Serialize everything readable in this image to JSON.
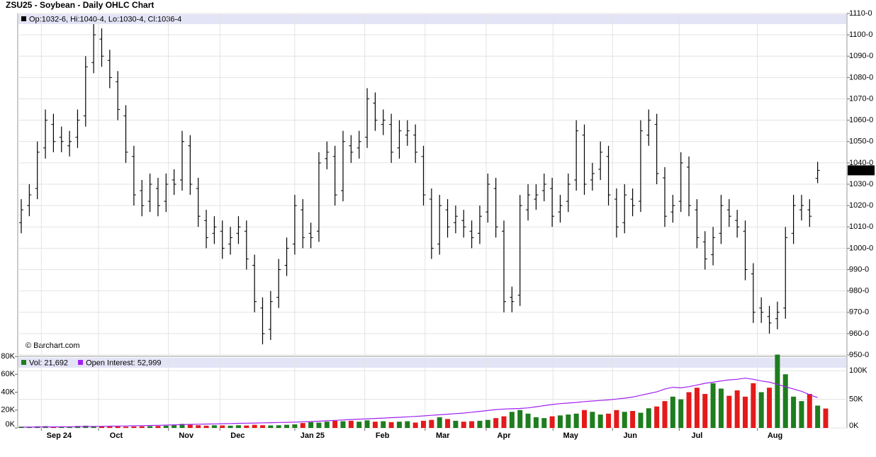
{
  "chart_data": [
    {
      "type": "ohlc",
      "title": "ZSU25 - Soybean - Daily OHLC Chart",
      "info": "Op:1032-6, Hi:1040-4, Lo:1030-4, Cl:1036-4",
      "source": "© Barchart.com",
      "last_label": "1036-4",
      "color": "#000000",
      "grid": true,
      "open": [
        1012,
        1020,
        1028,
        1047,
        1058,
        1052,
        1048,
        1052,
        1062,
        1087,
        1098,
        1088,
        1078,
        1062,
        1043,
        1027,
        1022,
        1028,
        1022,
        1032,
        1032,
        1048,
        1028,
        1013,
        1007,
        1008,
        1002,
        1007,
        1008,
        992,
        972,
        962,
        977,
        992,
        1002,
        1018,
        1007,
        1008,
        1042,
        1043,
        1027,
        1048,
        1047,
        1052,
        1068,
        1058,
        1058,
        1047,
        1053,
        1053,
        1043,
        1023,
        1002,
        1018,
        1012,
        1013,
        1008,
        1007,
        1017,
        1028,
        1008,
        977,
        978,
        1018,
        1023,
        1027,
        1028,
        1017,
        1022,
        1032,
        1053,
        1032,
        1037,
        1043,
        1023,
        1012,
        1023,
        1022,
        1053,
        1058,
        1033,
        1017,
        1022,
        1038,
        1018,
        1003,
        997,
        1007,
        1018,
        1013,
        1008,
        988,
        972,
        968,
        967,
        972,
        1007,
        1018,
        1018,
        1032.75
      ],
      "high": [
        1023,
        1030,
        1050,
        1065,
        1063,
        1057,
        1055,
        1065,
        1090,
        1105,
        1103,
        1093,
        1083,
        1067,
        1048,
        1032,
        1035,
        1033,
        1035,
        1037,
        1055,
        1053,
        1033,
        1018,
        1015,
        1013,
        1010,
        1015,
        1013,
        997,
        977,
        980,
        995,
        1005,
        1025,
        1023,
        1012,
        1045,
        1050,
        1048,
        1055,
        1053,
        1055,
        1075,
        1073,
        1065,
        1063,
        1060,
        1060,
        1058,
        1048,
        1028,
        1025,
        1023,
        1020,
        1018,
        1013,
        1020,
        1035,
        1033,
        1013,
        982,
        1025,
        1030,
        1030,
        1035,
        1033,
        1025,
        1035,
        1060,
        1058,
        1040,
        1050,
        1048,
        1028,
        1030,
        1028,
        1060,
        1065,
        1063,
        1038,
        1025,
        1045,
        1043,
        1023,
        1008,
        1010,
        1025,
        1023,
        1018,
        1013,
        993,
        977,
        973,
        975,
        1010,
        1025,
        1025,
        1023,
        1040.5
      ],
      "low": [
        1007,
        1015,
        1023,
        1042,
        1045,
        1045,
        1043,
        1047,
        1057,
        1082,
        1085,
        1075,
        1060,
        1040,
        1020,
        1015,
        1017,
        1015,
        1017,
        1025,
        1027,
        1025,
        1010,
        1000,
        1002,
        995,
        997,
        1002,
        990,
        970,
        955,
        957,
        972,
        987,
        997,
        1000,
        1000,
        1003,
        1037,
        1020,
        1022,
        1040,
        1042,
        1047,
        1055,
        1053,
        1040,
        1042,
        1048,
        1040,
        1020,
        995,
        997,
        1005,
        1007,
        1005,
        1000,
        1002,
        1012,
        1005,
        970,
        970,
        973,
        1013,
        1018,
        1022,
        1010,
        1012,
        1017,
        1027,
        1025,
        1027,
        1032,
        1020,
        1005,
        1007,
        1015,
        1017,
        1048,
        1030,
        1010,
        1012,
        1017,
        1015,
        1000,
        990,
        992,
        1002,
        1010,
        1005,
        985,
        965,
        965,
        960,
        962,
        967,
        1002,
        1013,
        1010,
        1030.5
      ],
      "close": [
        1018,
        1025,
        1045,
        1060,
        1050,
        1050,
        1050,
        1060,
        1085,
        1100,
        1090,
        1080,
        1065,
        1045,
        1025,
        1020,
        1030,
        1020,
        1030,
        1030,
        1050,
        1030,
        1015,
        1005,
        1010,
        1000,
        1005,
        1010,
        995,
        975,
        960,
        975,
        990,
        1000,
        1020,
        1005,
        1005,
        1040,
        1045,
        1025,
        1050,
        1045,
        1050,
        1070,
        1060,
        1060,
        1045,
        1055,
        1055,
        1045,
        1025,
        1000,
        1020,
        1010,
        1015,
        1010,
        1005,
        1015,
        1030,
        1010,
        975,
        975,
        1020,
        1025,
        1025,
        1030,
        1015,
        1020,
        1030,
        1055,
        1030,
        1035,
        1045,
        1025,
        1010,
        1025,
        1020,
        1055,
        1060,
        1035,
        1015,
        1020,
        1040,
        1020,
        1005,
        995,
        1005,
        1020,
        1015,
        1010,
        990,
        970,
        970,
        965,
        970,
        1005,
        1020,
        1020,
        1015,
        1036.5
      ],
      "ylim": [
        950,
        1110
      ],
      "yticks": [
        {
          "value": 950,
          "label": "950-0"
        },
        {
          "value": 960,
          "label": "960-0"
        },
        {
          "value": 970,
          "label": "970-0"
        },
        {
          "value": 980,
          "label": "980-0"
        },
        {
          "value": 990,
          "label": "990-0"
        },
        {
          "value": 1000,
          "label": "1000-0"
        },
        {
          "value": 1010,
          "label": "1010-0"
        },
        {
          "value": 1020,
          "label": "1020-0"
        },
        {
          "value": 1030,
          "label": "1030-0"
        },
        {
          "value": 1040,
          "label": "1040-0"
        },
        {
          "value": 1050,
          "label": "1050-0"
        },
        {
          "value": 1060,
          "label": "1060-0"
        },
        {
          "value": 1070,
          "label": "1070-0"
        },
        {
          "value": 1080,
          "label": "1080-0"
        },
        {
          "value": 1090,
          "label": "1090-0"
        },
        {
          "value": 1100,
          "label": "1100-0"
        },
        {
          "value": 1110,
          "label": "1110-0"
        }
      ],
      "xticks": [
        {
          "value": 2.5,
          "label": "Sep 24"
        },
        {
          "value": 9.6,
          "label": "Oct"
        },
        {
          "value": 18.3,
          "label": "Nov"
        },
        {
          "value": 24.7,
          "label": "Dec"
        },
        {
          "value": 34,
          "label": "Jan 25"
        },
        {
          "value": 42.7,
          "label": "Feb"
        },
        {
          "value": 50.2,
          "label": "Mar"
        },
        {
          "value": 57.8,
          "label": "Apr"
        },
        {
          "value": 66.1,
          "label": "May"
        },
        {
          "value": 73.5,
          "label": "Jun"
        },
        {
          "value": 81.8,
          "label": "Jul"
        },
        {
          "value": 91.5,
          "label": "Aug"
        }
      ]
    },
    {
      "type": "bar",
      "up_color": "#1e7d1e",
      "down_color": "#e41a1a",
      "series": [
        {
          "name": "Vol: 21,692",
          "color": "#1e7d1e",
          "values": [
            1500,
            1200,
            1800,
            2000,
            1500,
            1300,
            1600,
            2200,
            2500,
            2000,
            1800,
            1500,
            1700,
            1400,
            1600,
            1800,
            2000,
            2200,
            2500,
            3000,
            4500,
            3500,
            3000,
            2500,
            3000,
            2800,
            2500,
            3000,
            2700,
            3500,
            3000,
            2800,
            3000,
            3500,
            4000,
            5500,
            6500,
            6000,
            7000,
            8000,
            7500,
            8000,
            7000,
            8500,
            7000,
            7500,
            6500,
            7000,
            7500,
            6000,
            8000,
            9000,
            12000,
            10000,
            8000,
            7000,
            7500,
            8000,
            9000,
            11000,
            13000,
            18000,
            20000,
            16000,
            12000,
            11000,
            13000,
            14000,
            15000,
            16000,
            20000,
            18000,
            15000,
            16000,
            20000,
            18000,
            19000,
            17000,
            22000,
            24000,
            30000,
            35000,
            32000,
            40000,
            45000,
            38000,
            50000,
            44000,
            36000,
            42000,
            35000,
            50000,
            40000,
            45000,
            82000,
            60000,
            35000,
            30000,
            38000,
            25000,
            21692
          ]
        },
        {
          "name": "Open Interest: 52,999",
          "color": "#a020f0",
          "axis": "y2",
          "values": [
            1500,
            1600,
            1700,
            1800,
            1900,
            2000,
            2100,
            2300,
            2500,
            2700,
            2900,
            3100,
            3300,
            3500,
            3800,
            4000,
            4300,
            4600,
            5000,
            5400,
            5800,
            6200,
            6500,
            6800,
            7100,
            7400,
            7700,
            8000,
            8300,
            8600,
            8900,
            9200,
            9500,
            9800,
            10200,
            10700,
            11200,
            11800,
            12500,
            13300,
            14000,
            14700,
            15400,
            16000,
            16600,
            17200,
            17900,
            18600,
            19400,
            20200,
            21000,
            22000,
            23000,
            24000,
            25000,
            26000,
            27500,
            29000,
            30500,
            32000,
            33000,
            33500,
            34000,
            35000,
            37000,
            39000,
            41000,
            42500,
            43500,
            44500,
            46000,
            47000,
            48000,
            49000,
            50500,
            52000,
            54000,
            57000,
            60000,
            63000,
            68000,
            71000,
            70000,
            72000,
            75000,
            78000,
            80000,
            82000,
            84000,
            85000,
            87000,
            85000,
            82000,
            80000,
            76000,
            72000,
            68000,
            64000,
            58000,
            52999
          ]
        }
      ],
      "ylim": [
        0,
        80000
      ],
      "yticks": [
        {
          "value": 0,
          "label": "0K"
        },
        {
          "value": 20000,
          "label": "20K"
        },
        {
          "value": 40000,
          "label": "40K"
        },
        {
          "value": 60000,
          "label": "60K"
        },
        {
          "value": 80000,
          "label": "80K"
        }
      ],
      "y2lim": [
        0,
        125000
      ],
      "y2ticks": [
        {
          "value": 0,
          "label": "0K"
        },
        {
          "value": 50000,
          "label": "50K"
        },
        {
          "value": 100000,
          "label": "100K"
        }
      ]
    }
  ]
}
